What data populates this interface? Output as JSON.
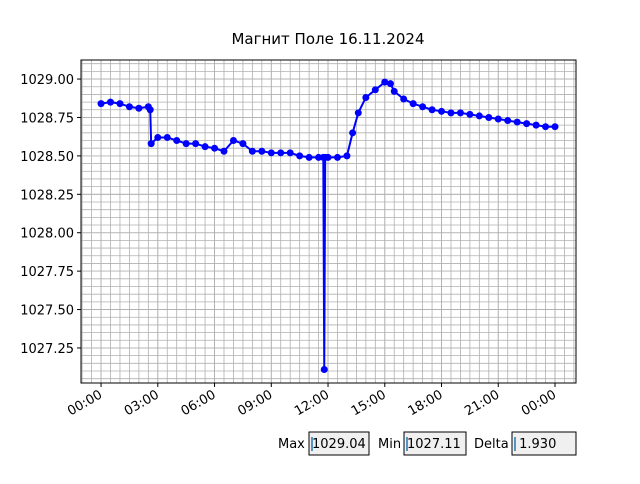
{
  "chart_data": {
    "type": "line",
    "title": "Магнит Поле 16.11.2024",
    "x": [
      0.0,
      0.5,
      1.0,
      1.5,
      2.0,
      2.5,
      2.6,
      2.65,
      3.0,
      3.5,
      4.0,
      4.5,
      5.0,
      5.5,
      6.0,
      6.5,
      7.0,
      7.5,
      8.0,
      8.5,
      9.0,
      9.5,
      10.0,
      10.5,
      11.0,
      11.5,
      11.75,
      11.8,
      11.85,
      12.0,
      12.5,
      13.0,
      13.3,
      13.6,
      14.0,
      14.5,
      15.0,
      15.3,
      15.5,
      16.0,
      16.5,
      17.0,
      17.5,
      18.0,
      18.5,
      19.0,
      19.5,
      20.0,
      20.5,
      21.0,
      21.5,
      22.0,
      22.5,
      23.0,
      23.5,
      24.0
    ],
    "series": [
      {
        "color": "#0000ff",
        "values": [
          1028.84,
          1028.85,
          1028.84,
          1028.82,
          1028.81,
          1028.82,
          1028.8,
          1028.58,
          1028.62,
          1028.62,
          1028.6,
          1028.58,
          1028.58,
          1028.56,
          1028.55,
          1028.53,
          1028.6,
          1028.58,
          1028.53,
          1028.53,
          1028.52,
          1028.52,
          1028.52,
          1028.5,
          1028.49,
          1028.49,
          1028.49,
          1027.11,
          1028.49,
          1028.49,
          1028.49,
          1028.5,
          1028.65,
          1028.78,
          1028.88,
          1028.93,
          1028.98,
          1028.97,
          1028.92,
          1028.87,
          1028.84,
          1028.82,
          1028.8,
          1028.79,
          1028.78,
          1028.78,
          1028.77,
          1028.76,
          1028.75,
          1028.74,
          1028.73,
          1028.72,
          1028.71,
          1028.7,
          1028.69,
          1028.69
        ]
      }
    ],
    "xlim": [
      -1.06,
      25.11
    ],
    "xticks": [
      {
        "value": 0,
        "label": "00:00"
      },
      {
        "value": 3,
        "label": "03:00"
      },
      {
        "value": 6,
        "label": "06:00"
      },
      {
        "value": 9,
        "label": "09:00"
      },
      {
        "value": 12,
        "label": "12:00"
      },
      {
        "value": 15,
        "label": "15:00"
      },
      {
        "value": 18,
        "label": "18:00"
      },
      {
        "value": 21,
        "label": "21:00"
      },
      {
        "value": 24,
        "label": "00:00"
      }
    ],
    "ylim": [
      1027.022,
      1029.124
    ],
    "yticks": [
      {
        "value": 1027.25,
        "label": "1027.25"
      },
      {
        "value": 1027.5,
        "label": "1027.50"
      },
      {
        "value": 1027.75,
        "label": "1027.75"
      },
      {
        "value": 1028,
        "label": "1028.00"
      },
      {
        "value": 1028.25,
        "label": "1028.25"
      },
      {
        "value": 1028.5,
        "label": "1028.50"
      },
      {
        "value": 1028.75,
        "label": "1028.75"
      },
      {
        "value": 1029,
        "label": "1029.00"
      }
    ],
    "grid": true,
    "minor_grid": true
  },
  "widgets": [
    {
      "label": "Max",
      "value": "1029.04"
    },
    {
      "label": "Min",
      "value": "1027.11"
    },
    {
      "label": "Delta",
      "value": " 1.930"
    }
  ]
}
